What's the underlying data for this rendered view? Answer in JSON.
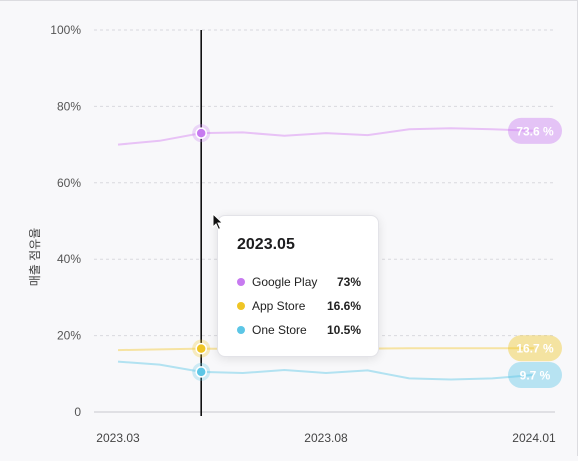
{
  "chart_data": {
    "type": "line",
    "ylabel": "매출 점유율",
    "x_tick_labels": [
      "2023.03",
      "2023.08",
      "2024.01"
    ],
    "y_tick_labels": [
      "0",
      "20%",
      "40%",
      "60%",
      "80%",
      "100%"
    ],
    "x": [
      "2023.03",
      "2023.04",
      "2023.05",
      "2023.06",
      "2023.07",
      "2023.08",
      "2023.09",
      "2023.10",
      "2023.11",
      "2023.12",
      "2024.01"
    ],
    "ylim": [
      0,
      100
    ],
    "grid": true,
    "series": [
      {
        "name": "Google Play",
        "color": "#c77af0",
        "line_color": "#e8c2f6",
        "values": [
          70.0,
          71.0,
          73.0,
          73.2,
          72.3,
          73.0,
          72.5,
          74.0,
          74.3,
          74.0,
          73.6
        ],
        "end_label": "73.6 %"
      },
      {
        "name": "App Store",
        "color": "#efc525",
        "line_color": "#f6e3a2",
        "values": [
          16.2,
          16.4,
          16.6,
          16.5,
          16.5,
          16.6,
          16.6,
          16.7,
          16.7,
          16.7,
          16.7
        ],
        "end_label": "16.7 %"
      },
      {
        "name": "One Store",
        "color": "#5cc6e6",
        "line_color": "#b2e2f1",
        "values": [
          13.2,
          12.4,
          10.5,
          10.2,
          11.0,
          10.2,
          10.9,
          8.8,
          8.5,
          8.8,
          9.7
        ],
        "end_label": "9.7 %"
      }
    ],
    "tooltip": {
      "title": "2023.05",
      "rows": [
        {
          "label": "Google Play",
          "value": "73%"
        },
        {
          "label": "App Store",
          "value": "16.6%"
        },
        {
          "label": "One Store",
          "value": "10.5%"
        }
      ]
    },
    "hover_index": 2
  }
}
